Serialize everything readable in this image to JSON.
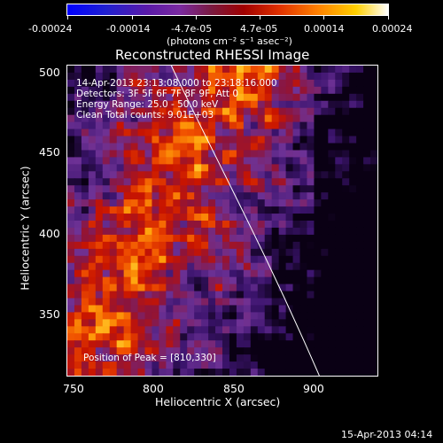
{
  "colorbar": {
    "tick_labels": [
      "-0.00024",
      "-0.00014",
      "-4.7e-05",
      "4.7e-05",
      "0.00014",
      "0.00024"
    ],
    "unit": "(photons cm⁻² s⁻¹ asec⁻²)"
  },
  "title": "Reconstructed RHESSI Image",
  "annotations": {
    "time": "14-Apr-2013 23:13:08.000 to 23:18:16.000",
    "detectors": "Detectors: 3F 5F 6F 7F 8F 9F, Att 0",
    "energy": "Energy Range: 25.0 - 50.0 keV",
    "method": "Clean     Total counts: 9.01E+03",
    "peak": "Position of Peak = [810,330]"
  },
  "axes": {
    "x_label": "Heliocentric X (arcsec)",
    "y_label": "Heliocentric Y (arcsec)",
    "x_ticks": [
      "750",
      "800",
      "850",
      "900"
    ],
    "y_ticks": [
      "500",
      "450",
      "400",
      "350"
    ],
    "x_range": [
      745,
      940
    ],
    "y_range": [
      310,
      505
    ]
  },
  "footer_date": "15-Apr-2013 04:14",
  "colors": {
    "limb_line": "#ffffff",
    "background": "#000000"
  }
}
